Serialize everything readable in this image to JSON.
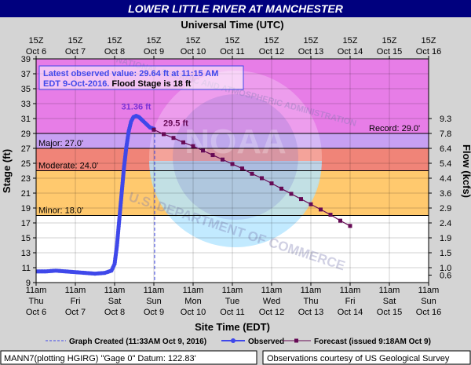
{
  "title": "LOWER LITTLE RIVER AT MANCHESTER",
  "top_axis_title": "Universal Time (UTC)",
  "bottom_axis_title": "Site Time (EDT)",
  "left_axis_title": "Stage (ft)",
  "right_axis_title": "Flow (kcfs)",
  "info": {
    "line1": "Latest observed value: 29.64 ft at 11:15 AM",
    "line2_blue": "EDT 9-Oct-2016.",
    "line2_rest": " Flood Stage is 18 ft"
  },
  "legend": {
    "graph_created": "Graph Created (11:33AM Oct 9, 2016)",
    "observed": "Observed",
    "forecast": "Forecast (issued 9:18AM Oct 9)"
  },
  "footer": {
    "left": "MANN7(plotting HGIRG) \"Gage 0\" Datum: 122.83'",
    "right": "Observations courtesy of US Geological Survey"
  },
  "watermark_lines": [
    "NATIONAL OCEANIC AND ATMOSPHERIC ADMINISTRATION",
    "U.S. DEPARTMENT OF COMMERCE",
    "NOAA"
  ],
  "colors": {
    "record": "#e77de7",
    "major": "#c7a0f3",
    "moderate": "#f08478",
    "minor": "#ffc96e",
    "normal": "#ffffff",
    "observed": "#3f48ea",
    "forecast": "#660a55",
    "title_bar": "#00007e"
  },
  "chart_data": {
    "type": "line",
    "ylim": [
      9,
      39
    ],
    "xlim": [
      "Oct 6 10:00 EDT",
      "Oct 16 11:00 EDT"
    ],
    "y_ticks": [
      "9",
      "11",
      "13",
      "15",
      "17",
      "19",
      "21",
      "23",
      "25",
      "27",
      "29",
      "31",
      "33",
      "35",
      "37",
      "39"
    ],
    "top_ticks": [
      [
        "15Z",
        "Oct 6"
      ],
      [
        "15Z",
        "Oct 7"
      ],
      [
        "15Z",
        "Oct 8"
      ],
      [
        "15Z",
        "Oct 9"
      ],
      [
        "15Z",
        "Oct 10"
      ],
      [
        "15Z",
        "Oct 11"
      ],
      [
        "15Z",
        "Oct 12"
      ],
      [
        "15Z",
        "Oct 13"
      ],
      [
        "15Z",
        "Oct 14"
      ],
      [
        "15Z",
        "Oct 15"
      ],
      [
        "15Z",
        "Oct 16"
      ]
    ],
    "bottom_ticks": [
      [
        "11am",
        "Thu",
        "Oct 6"
      ],
      [
        "11am",
        "Fri",
        "Oct 7"
      ],
      [
        "11am",
        "Sat",
        "Oct 8"
      ],
      [
        "11am",
        "Sun",
        "Oct 9"
      ],
      [
        "11am",
        "Mon",
        "Oct 10"
      ],
      [
        "11am",
        "Tue",
        "Oct 11"
      ],
      [
        "11am",
        "Wed",
        "Oct 12"
      ],
      [
        "11am",
        "Thu",
        "Oct 13"
      ],
      [
        "11am",
        "Fri",
        "Oct 14"
      ],
      [
        "11am",
        "Sat",
        "Oct 15"
      ],
      [
        "11am",
        "Sun",
        "Oct 16"
      ]
    ],
    "flow_ticks": [
      {
        "stage": 10,
        "label": "0.6"
      },
      {
        "stage": 11,
        "label": "1.0"
      },
      {
        "stage": 13,
        "label": "1.5"
      },
      {
        "stage": 15,
        "label": "1.9"
      },
      {
        "stage": 17,
        "label": "2.4"
      },
      {
        "stage": 19,
        "label": "2.9"
      },
      {
        "stage": 21,
        "label": "3.6"
      },
      {
        "stage": 23,
        "label": "4.4"
      },
      {
        "stage": 25,
        "label": "5.4"
      },
      {
        "stage": 27,
        "label": "6.4"
      },
      {
        "stage": 29,
        "label": "7.8"
      },
      {
        "stage": 31,
        "label": "9.3"
      }
    ],
    "thresholds": [
      {
        "name": "Record",
        "label": "Record: 29.0'",
        "value": 29
      },
      {
        "name": "Major",
        "label": "Major: 27.0'",
        "value": 27
      },
      {
        "name": "Moderate",
        "label": "Moderate: 24.0'",
        "value": 24
      },
      {
        "name": "Minor",
        "label": "Minor: 18.0'",
        "value": 18
      }
    ],
    "graph_created_day": 3.02,
    "annotations": [
      {
        "text": "31.36 ft",
        "day": 2.55,
        "stage": 31.36,
        "color": "#7a32d6"
      },
      {
        "text": "29.5 ft",
        "day": 3.18,
        "stage": 29.5,
        "color": "#660a55"
      }
    ],
    "series": [
      {
        "name": "Observed",
        "day": [
          0.0,
          0.25,
          0.5,
          0.75,
          1.0,
          1.25,
          1.5,
          1.75,
          1.92,
          2.0,
          2.06,
          2.12,
          2.18,
          2.24,
          2.3,
          2.36,
          2.42,
          2.48,
          2.55,
          2.62,
          2.7,
          2.8,
          2.9,
          3.0
        ],
        "stage": [
          10.5,
          10.5,
          10.6,
          10.5,
          10.4,
          10.3,
          10.2,
          10.3,
          10.6,
          11.5,
          14.0,
          17.5,
          21.0,
          24.5,
          27.2,
          29.3,
          30.6,
          31.2,
          31.36,
          31.2,
          30.8,
          30.3,
          29.8,
          29.64
        ]
      },
      {
        "name": "Forecast",
        "day": [
          3.0,
          3.25,
          3.5,
          3.75,
          4.0,
          4.25,
          4.5,
          4.75,
          5.0,
          5.25,
          5.5,
          5.75,
          6.0,
          6.25,
          6.5,
          6.75,
          7.0,
          7.25,
          7.5,
          7.75,
          8.0
        ],
        "stage": [
          29.5,
          28.9,
          28.4,
          27.8,
          27.3,
          26.7,
          26.1,
          25.5,
          24.9,
          24.3,
          23.6,
          23.0,
          22.3,
          21.6,
          20.9,
          20.2,
          19.5,
          18.8,
          18.1,
          17.3,
          16.6
        ]
      }
    ]
  }
}
